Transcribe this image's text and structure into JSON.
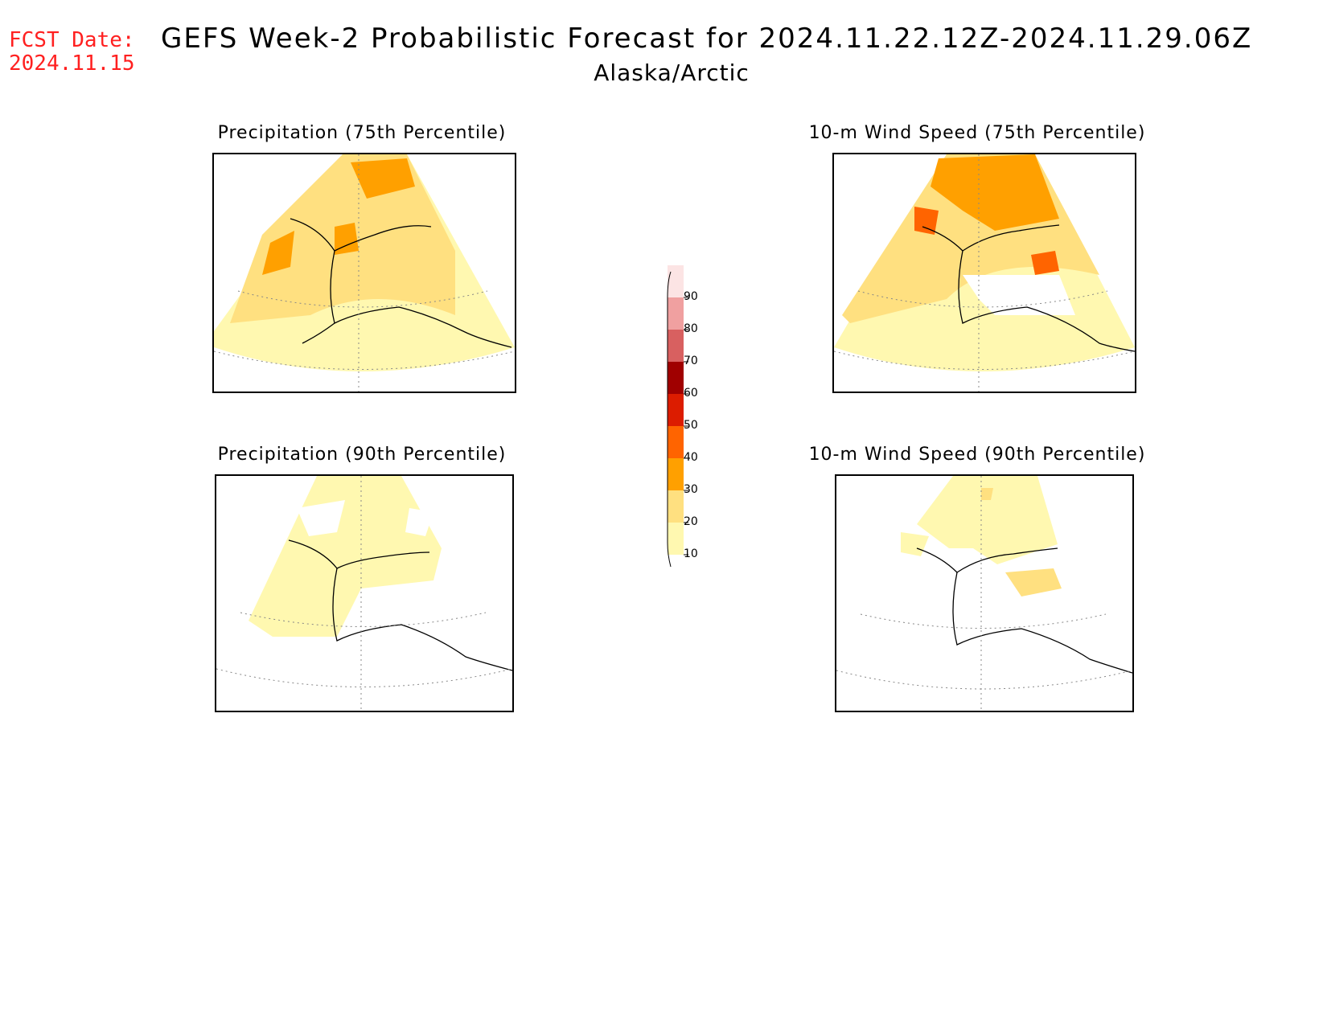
{
  "header": {
    "fcst_label": "FCST Date:",
    "fcst_date": "2024.11.15",
    "title": "GEFS Week-2 Probabilistic Forecast for 2024.11.22.12Z-2024.11.29.06Z",
    "subtitle": "Alaska/Arctic"
  },
  "panels": [
    {
      "id": "precip75",
      "title": "Precipitation (75th Percentile)",
      "variable": "precipitation",
      "percentile": 75
    },
    {
      "id": "wind75",
      "title": "10-m Wind Speed (75th Percentile)",
      "variable": "10-m wind speed",
      "percentile": 75
    },
    {
      "id": "precip90",
      "title": "Precipitation (90th Percentile)",
      "variable": "precipitation",
      "percentile": 90
    },
    {
      "id": "wind90",
      "title": "10-m Wind Speed (90th Percentile)",
      "variable": "10-m wind speed",
      "percentile": 90
    }
  ],
  "legend": {
    "levels": [
      {
        "label": "90",
        "color": "#fce4e4"
      },
      {
        "label": "80",
        "color": "#f0a0a0"
      },
      {
        "label": "70",
        "color": "#d86060"
      },
      {
        "label": "60",
        "color": "#a00000"
      },
      {
        "label": "50",
        "color": "#dc1c00"
      },
      {
        "label": "40",
        "color": "#ff6400"
      },
      {
        "label": "30",
        "color": "#ffa000"
      },
      {
        "label": "20",
        "color": "#ffe080"
      },
      {
        "label": "10",
        "color": "#fff8b0"
      }
    ]
  }
}
